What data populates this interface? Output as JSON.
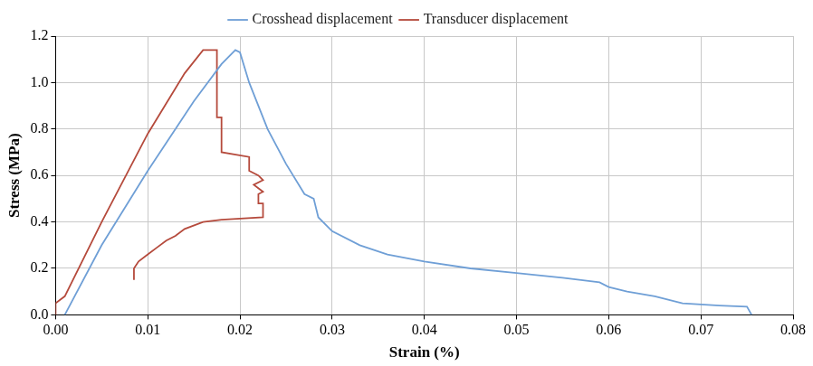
{
  "chart_data": {
    "type": "line",
    "x_label": "Strain (%)",
    "y_label": "Stress (MPa)",
    "xlim": [
      0,
      0.08
    ],
    "xticks": [
      {
        "value": 0,
        "label": "0.00"
      },
      0.01,
      0.02,
      0.03,
      0.04,
      0.05,
      0.06,
      0.07,
      0.08
    ],
    "ylim": [
      0,
      1.2
    ],
    "yticks": [
      {
        "value": 0,
        "label": "0.0"
      },
      0.2,
      0.4,
      0.6,
      0.8,
      {
        "value": 1,
        "label": "1.0"
      },
      1.2
    ],
    "grid": true,
    "legend": "top",
    "series": [
      {
        "name": "Crosshead displacement",
        "color": "#6f9fd6",
        "line_style": "solid",
        "x": [
          0.001,
          0.005,
          0.01,
          0.015,
          0.018,
          0.0195,
          0.02,
          0.021,
          0.023,
          0.025,
          0.027,
          0.028,
          0.0285,
          0.03,
          0.033,
          0.036,
          0.04,
          0.045,
          0.05,
          0.055,
          0.059,
          0.06,
          0.062,
          0.065,
          0.068,
          0.072,
          0.075,
          0.0755
        ],
        "values": [
          0,
          0.3,
          0.62,
          0.92,
          1.08,
          1.14,
          1.13,
          1.0,
          0.8,
          0.65,
          0.52,
          0.5,
          0.42,
          0.36,
          0.3,
          0.26,
          0.23,
          0.2,
          0.18,
          0.16,
          0.14,
          0.12,
          0.1,
          0.08,
          0.05,
          0.04,
          0.035,
          0
        ]
      },
      {
        "name": "Transducer displacement",
        "color": "#b54a3c",
        "line_style": "solid",
        "x": [
          0,
          0,
          0.001,
          0.005,
          0.01,
          0.014,
          0.016,
          0.0175,
          0.0175,
          0.0175,
          0.018,
          0.018,
          0.021,
          0.021,
          0.022,
          0.0225,
          0.0215,
          0.0225,
          0.022,
          0.022,
          0.0225,
          0.0225,
          0.018,
          0.016,
          0.014,
          0.013,
          0.012,
          0.011,
          0.01,
          0.009,
          0.0085,
          0.0085,
          0.0085
        ],
        "values": [
          0,
          0.05,
          0.08,
          0.4,
          0.78,
          1.04,
          1.14,
          1.14,
          0.95,
          0.85,
          0.85,
          0.7,
          0.68,
          0.62,
          0.6,
          0.58,
          0.56,
          0.53,
          0.52,
          0.48,
          0.48,
          0.42,
          0.41,
          0.4,
          0.37,
          0.34,
          0.32,
          0.29,
          0.26,
          0.23,
          0.2,
          0.17,
          0.15
        ]
      }
    ]
  }
}
